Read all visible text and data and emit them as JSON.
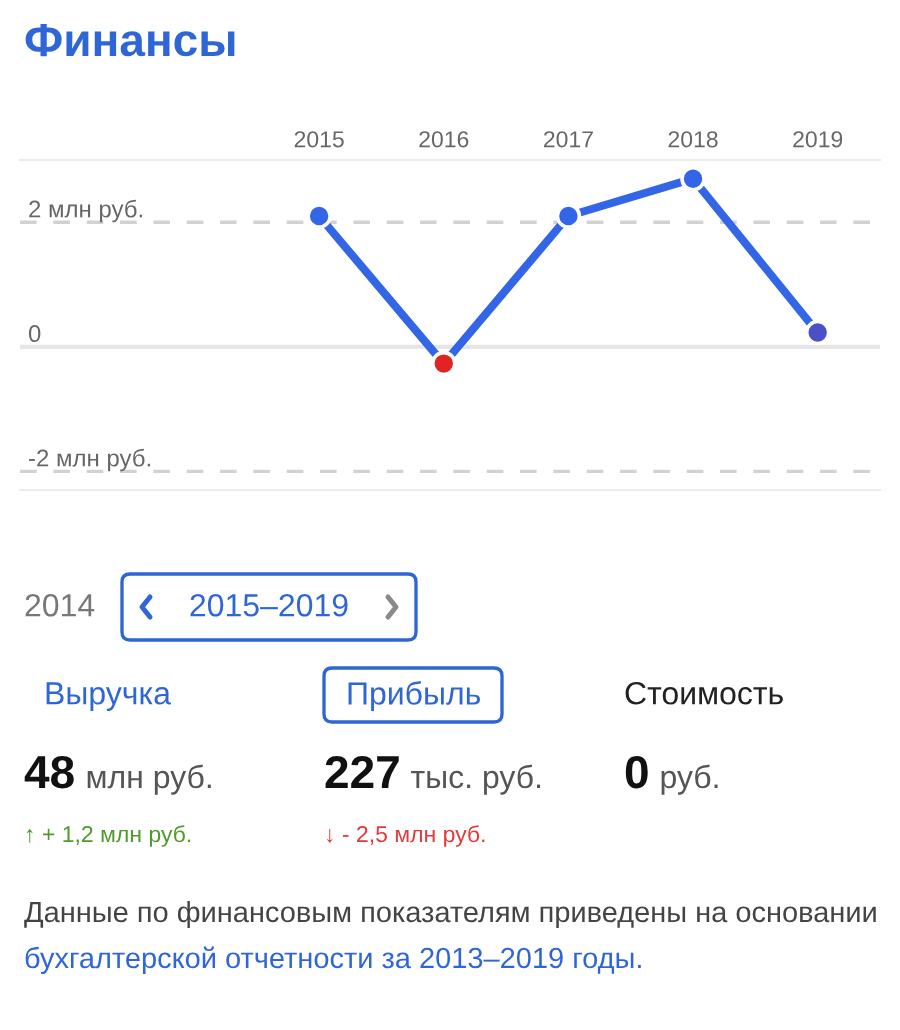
{
  "chart_data": [
    {
      "type": "line",
      "title": "Финансы",
      "categories": [
        "2015",
        "2016",
        "2017",
        "2018",
        "2019"
      ],
      "series": [
        {
          "color": "#3366e6",
          "colors": [
            "#3366e6",
            "#e02424",
            "#3366e6",
            "#3366e6",
            "#4b50c8"
          ],
          "values": [
            2.1,
            -0.27,
            2.1,
            2.7,
            0.23
          ]
        }
      ],
      "ylim": [
        -2.3,
        3.0
      ],
      "yticks": [
        {
          "value": -2,
          "label": "-2 млн руб."
        },
        0,
        {
          "value": 2,
          "label": "2 млн руб."
        }
      ],
      "grid": "y",
      "marker": "circle",
      "line_style": "solid",
      "ref_lines": [
        {
          "axis": "y",
          "value": 0,
          "color": "#e6e6e6",
          "line_style": "solid"
        }
      ]
    },
    {
      "type": "other",
      "annotations": [
        "2014",
        "2015–2019",
        "Выручка",
        "Прибыль",
        "Стоимость",
        "48",
        "млн руб.",
        "227",
        "тыс. руб.",
        "0",
        "руб.",
        "↑ + 1,2 млн руб.",
        "↓ - 2,5 млн руб.",
        "Данные по финансовым показателям приведены на основании",
        "бухгалтерской отчетности за 2013–2019 годы."
      ]
    }
  ]
}
